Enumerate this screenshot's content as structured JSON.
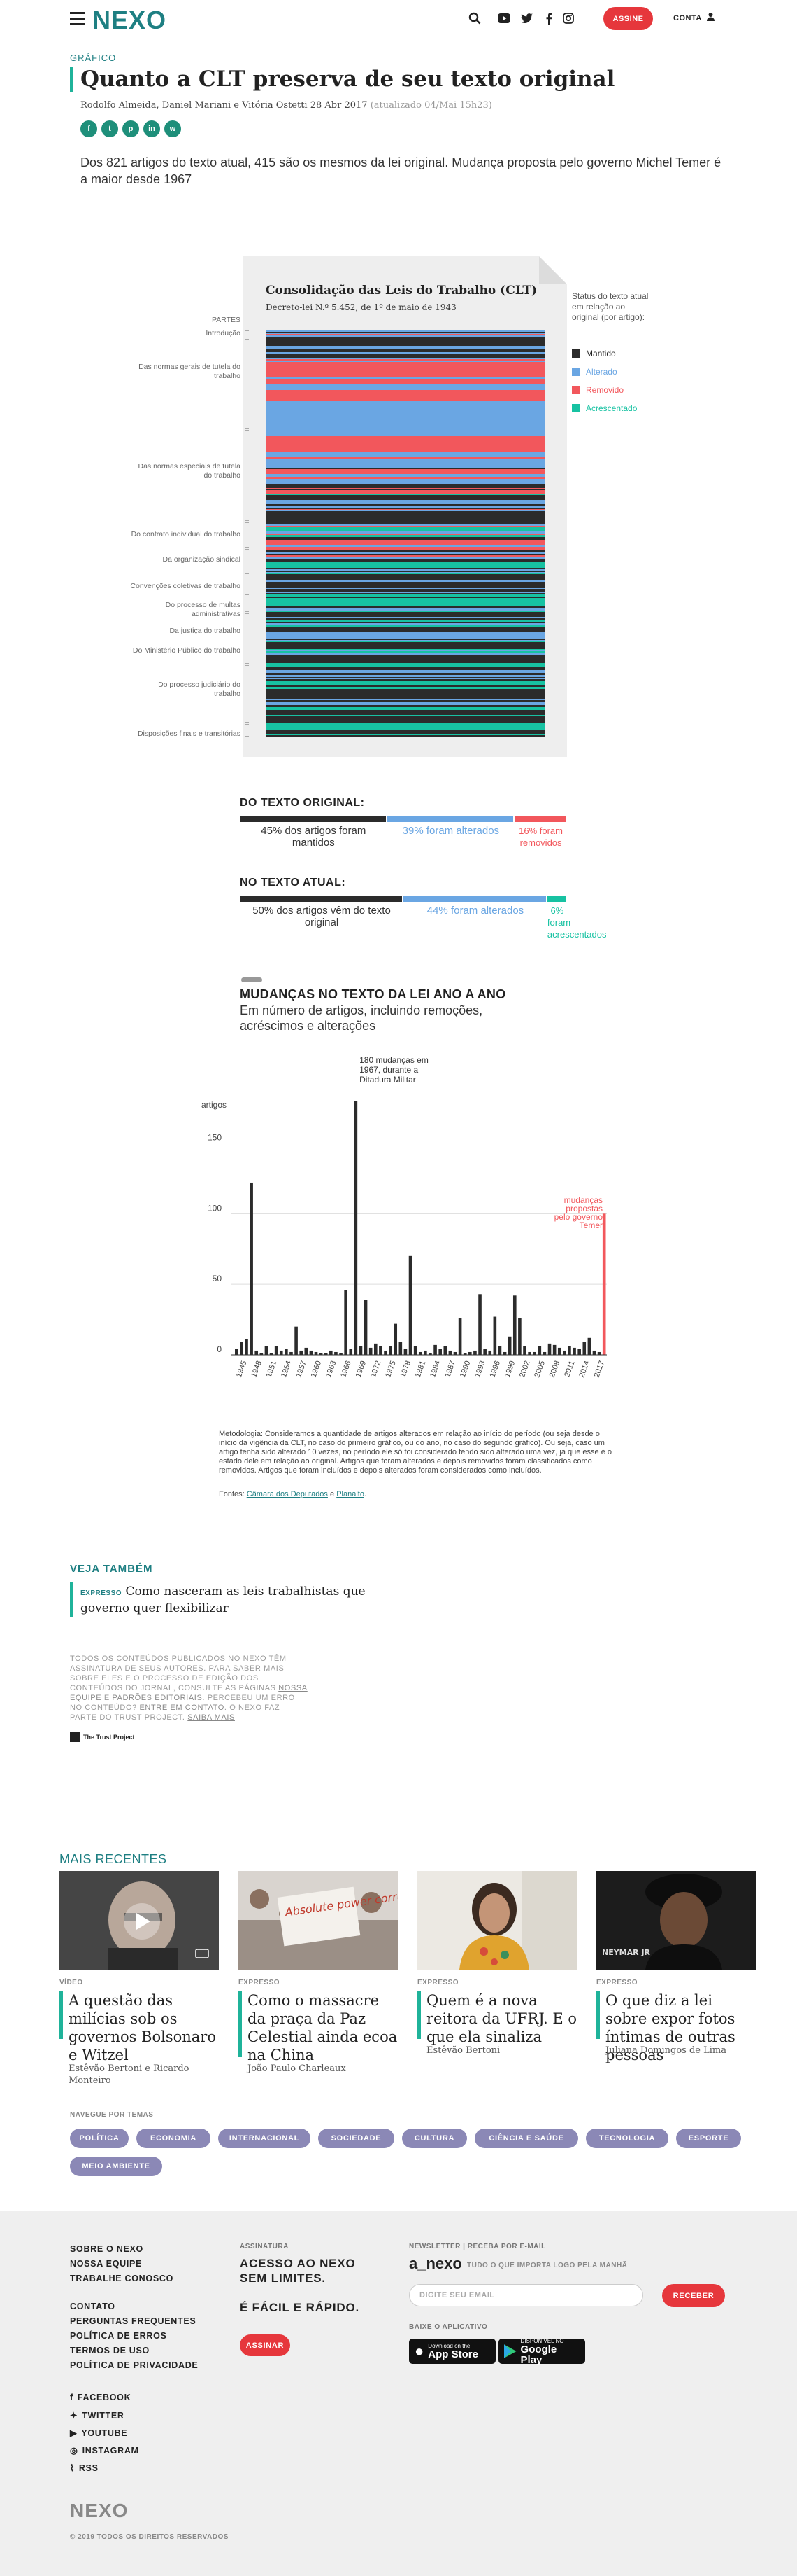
{
  "header": {
    "logo": "NEXO",
    "subscribe": "ASSINE",
    "account": "CONTA"
  },
  "article": {
    "kicker": "GRÁFICO",
    "title": "Quanto a CLT preserva de seu texto original",
    "authors": "Rodolfo Almeida, Daniel Mariani e Vitória Ostetti",
    "date": "28 Abr 2017",
    "updated": "(atualizado 04/Mai 15h23)",
    "lead": "Dos 821 artigos do texto atual, 415 são os mesmos da lei original. Mudança proposta pelo governo Michel Temer é a maior desde 1967"
  },
  "share_icons": [
    "facebook-icon",
    "twitter-icon",
    "pinterest-icon",
    "linkedin-icon",
    "whatsapp-icon"
  ],
  "clt_chart": {
    "title": "Consolidação das Leis do Trabalho (CLT)",
    "subtitle": "Decreto-lei N.º 5.452, de 1º de maio de 1943",
    "parts_heading": "PARTES",
    "parts": [
      "Introdução",
      "Das normas gerais de tutela do trabalho",
      "Das normas especiais de tutela do trabalho",
      "Do contrato individual do trabalho",
      "Da organização sindical",
      "Convenções coletivas de trabalho",
      "Do processo de multas administrativas",
      "Da justiça do trabalho",
      "Do Ministério Público do trabalho",
      "Do processo judiciário do trabalho",
      "Disposições finais e transitórias"
    ],
    "legend_title": "Status do texto atual em relação ao original (por artigo):",
    "legend": [
      {
        "label": "Mantido",
        "color": "#2b2b2b"
      },
      {
        "label": "Alterado",
        "color": "#6aa6e3"
      },
      {
        "label": "Removido",
        "color": "#f2575c"
      },
      {
        "label": "Acrescentado",
        "color": "#17c2a2"
      }
    ]
  },
  "summary": {
    "original": {
      "heading": "DO TEXTO ORIGINAL:",
      "items": [
        {
          "text": "45% dos artigos foram mantidos",
          "pct": 45,
          "color": "#2b2b2b",
          "tcolor": "#333"
        },
        {
          "text": "39% foram alterados",
          "pct": 39,
          "color": "#6aa6e3",
          "tcolor": "#6aa6e3"
        },
        {
          "text": "16% foram removidos",
          "pct": 16,
          "color": "#f2575c",
          "tcolor": "#f2575c"
        }
      ]
    },
    "current": {
      "heading": "NO TEXTO ATUAL:",
      "items": [
        {
          "text": "50% dos artigos vêm do texto original",
          "pct": 50,
          "color": "#2b2b2b",
          "tcolor": "#333"
        },
        {
          "text": "44% foram alterados",
          "pct": 44,
          "color": "#6aa6e3",
          "tcolor": "#6aa6e3"
        },
        {
          "text": "6% foram acrescentados",
          "pct": 6,
          "color": "#17c2a2",
          "tcolor": "#17c2a2"
        }
      ]
    }
  },
  "chart_data": {
    "type": "bar",
    "title": "MUDANÇAS NO TEXTO DA LEI ANO A ANO",
    "subtitle": "Em número de artigos, incluindo remoções, acréscimos e alterações",
    "ylabel": "artigos",
    "ylim": [
      0,
      180
    ],
    "yticks": [
      0,
      50,
      100,
      150
    ],
    "tick_labels": [
      "1945",
      "1948",
      "1951",
      "1954",
      "1957",
      "1960",
      "1963",
      "1966",
      "1969",
      "1972",
      "1975",
      "1978",
      "1981",
      "1984",
      "1987",
      "1990",
      "1993",
      "1996",
      "1999",
      "2002",
      "2005",
      "2008",
      "2011",
      "2014",
      "2017"
    ],
    "x": [
      1943,
      1944,
      1945,
      1946,
      1947,
      1948,
      1949,
      1950,
      1951,
      1952,
      1953,
      1954,
      1955,
      1956,
      1957,
      1958,
      1959,
      1960,
      1961,
      1962,
      1963,
      1964,
      1965,
      1966,
      1967,
      1968,
      1969,
      1970,
      1971,
      1972,
      1973,
      1974,
      1975,
      1976,
      1977,
      1978,
      1979,
      1980,
      1981,
      1982,
      1983,
      1984,
      1985,
      1986,
      1987,
      1988,
      1989,
      1990,
      1991,
      1992,
      1993,
      1994,
      1995,
      1996,
      1997,
      1998,
      1999,
      2000,
      2001,
      2002,
      2003,
      2004,
      2005,
      2006,
      2007,
      2008,
      2009,
      2010,
      2011,
      2012,
      2013,
      2014,
      2015,
      2016,
      2017
    ],
    "values": [
      4,
      9,
      11,
      122,
      3,
      1,
      6,
      1,
      6,
      3,
      4,
      2,
      20,
      3,
      5,
      3,
      2,
      1,
      1,
      3,
      2,
      1,
      46,
      4,
      180,
      6,
      39,
      5,
      8,
      6,
      3,
      6,
      22,
      9,
      4,
      70,
      6,
      2,
      3,
      1,
      7,
      4,
      6,
      3,
      2,
      26,
      1,
      2,
      3,
      43,
      4,
      3,
      27,
      6,
      2,
      13,
      42,
      26,
      6,
      2,
      2,
      6,
      2,
      8,
      7,
      5,
      3,
      6,
      5,
      4,
      9,
      12,
      3,
      2,
      100
    ],
    "annotations": [
      {
        "text": "180 mudanças em 1967, durante a Ditadura Militar",
        "x": 1967
      },
      {
        "text": "mudanças propostas pelo governo Temer",
        "x": 2017
      }
    ],
    "highlight_color": "#f2575c",
    "bar_color": "#2b2b2b"
  },
  "notes": "Metodologia: Consideramos a quantidade de artigos alterados em relação ao início do período (ou seja desde o início da vigência da CLT, no caso do primeiro gráfico, ou do ano, no caso do segundo gráfico). Ou seja, caso um artigo tenha sido alterado 10 vezes, no período ele só foi considerado tendo sido alterado uma vez, já que esse é o estado dele em relação ao original. Artigos que foram alterados e depois removidos foram classificados como removidos. Artigos que foram incluídos e depois alterados foram considerados como incluídos.",
  "sources": {
    "label": "Fontes:",
    "a": "Câmara dos Deputados",
    "and": "e",
    "b": "Planalto",
    "end": "."
  },
  "see_also": {
    "heading": "VEJA TAMBÉM",
    "label": "EXPRESSO",
    "title": "Como nasceram as leis trabalhistas que governo quer flexibilizar"
  },
  "trust": {
    "text": "TODOS OS CONTEÚDOS PUBLICADOS NO NEXO TÊM ASSINATURA DE SEUS AUTORES. PARA SABER MAIS SOBRE ELES E O PROCESSO DE EDIÇÃO DOS CONTEÚDOS DO JORNAL, CONSULTE AS PÁGINAS",
    "l1": "NOSSA EQUIPE",
    "mid": "E",
    "l2": "PADRÕES EDITORIAIS",
    "t2": ". PERCEBEU UM ERRO NO CONTEÚDO?",
    "l3": "ENTRE EM CONTATO",
    "t3": ". O NEXO FAZ PARTE DO TRUST PROJECT.",
    "l4": "SAIBA MAIS",
    "badge": "The Trust Project"
  },
  "recent": {
    "heading": "MAIS RECENTES",
    "items": [
      {
        "label": "VÍDEO",
        "title": "A questão das milícias sob os governos Bolsonaro e Witzel",
        "author": "Estêvão Bertoni e Ricardo Monteiro"
      },
      {
        "label": "EXPRESSO",
        "title": "Como o massacre da praça da Paz Celestial ainda ecoa na China",
        "author": "João Paulo Charleaux",
        "sign": "Absolute power corrupts absolutely"
      },
      {
        "label": "EXPRESSO",
        "title": "Quem é a nova reitora da UFRJ. E o que ela sinaliza",
        "author": "Estêvão Bertoni"
      },
      {
        "label": "EXPRESSO",
        "title": "O que diz a lei sobre expor fotos íntimas de outras pessoas",
        "author": "Juliana Domingos de Lima",
        "photo_text": "NEYMAR JR"
      }
    ]
  },
  "themes": {
    "heading": "NAVEGUE POR TEMAS",
    "tags": [
      "POLÍTICA",
      "ECONOMIA",
      "INTERNACIONAL",
      "SOCIEDADE",
      "CULTURA",
      "CIÊNCIA E SAÚDE",
      "TECNOLOGIA",
      "ESPORTE",
      "MEIO AMBIENTE"
    ]
  },
  "footer": {
    "links1": [
      "SOBRE O NEXO",
      "NOSSA EQUIPE",
      "TRABALHE CONOSCO"
    ],
    "links2": [
      "CONTATO",
      "PERGUNTAS FREQUENTES",
      "POLÍTICA DE ERROS",
      "TERMOS DE USO",
      "POLÍTICA DE PRIVACIDADE"
    ],
    "social": [
      "FACEBOOK",
      "TWITTER",
      "YOUTUBE",
      "INSTAGRAM",
      "RSS"
    ],
    "sub_heading": "ASSINATURA",
    "sub_line1": "ACESSO AO NEXO",
    "sub_line2": "SEM LIMITES.",
    "sub_line3": "É FÁCIL E RÁPIDO.",
    "sub_button": "ASSINAR",
    "newsletter_heading": "NEWSLETTER | RECEBA POR E-MAIL",
    "newsletter_logo": "a_nexo",
    "newsletter_tagline": "TUDO O QUE IMPORTA LOGO PELA MANHÃ",
    "email_placeholder": "DIGITE SEU EMAIL",
    "receive": "RECEBER",
    "app_heading": "BAIXE O APLICATIVO",
    "appstore_small": "Download on the",
    "appstore": "App Store",
    "gplay_small": "DISPONÍVEL NO",
    "gplay": "Google Play",
    "logo": "NEXO",
    "copyright": "© 2019 TODOS OS DIREITOS RESERVADOS"
  }
}
